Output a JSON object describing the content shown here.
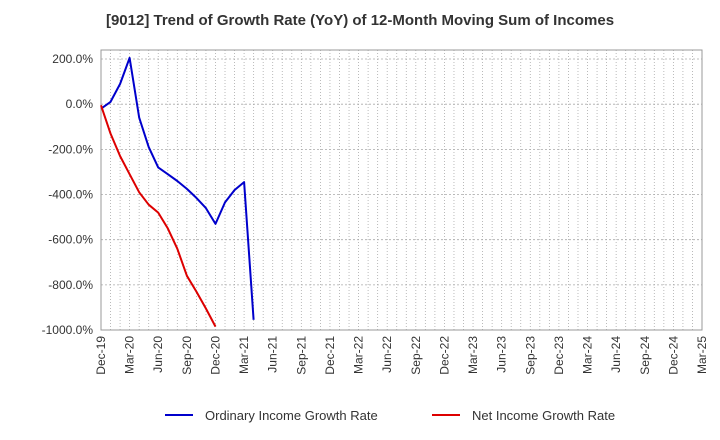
{
  "chart_data": {
    "type": "line",
    "title": "[9012]  Trend of Growth Rate (YoY) of 12-Month Moving Sum of Incomes",
    "xlabel": "",
    "ylabel": "",
    "x_tick_labels": [
      "Dec-19",
      "Mar-20",
      "Jun-20",
      "Sep-20",
      "Dec-20",
      "Mar-21",
      "Jun-21",
      "Sep-21",
      "Dec-21",
      "Mar-22",
      "Jun-22",
      "Sep-22",
      "Dec-22",
      "Mar-23",
      "Jun-23",
      "Sep-23",
      "Dec-23",
      "Mar-24",
      "Jun-24",
      "Sep-24",
      "Dec-24",
      "Mar-25"
    ],
    "y_tick_labels": [
      "200.0%",
      "0.0%",
      "-200.0%",
      "-400.0%",
      "-600.0%",
      "-800.0%",
      "-1000.0%"
    ],
    "y_ticks": [
      200,
      0,
      -200,
      -400,
      -600,
      -800,
      -1000
    ],
    "ylim": [
      -1000,
      240
    ],
    "x_months": 63,
    "grid": true,
    "legend_position": "bottom",
    "series": [
      {
        "name": "Ordinary Income Growth Rate",
        "color": "#0000cc",
        "x": [
          "Dec-19",
          "Jan-20",
          "Feb-20",
          "Mar-20",
          "Apr-20",
          "May-20",
          "Jun-20",
          "Jul-20",
          "Aug-20",
          "Sep-20",
          "Oct-20",
          "Nov-20",
          "Dec-20",
          "Jan-21",
          "Feb-21",
          "Mar-21",
          "Apr-21"
        ],
        "values": [
          -20,
          10,
          90,
          205,
          -60,
          -190,
          -280,
          -310,
          -340,
          -375,
          -415,
          -460,
          -530,
          -435,
          -380,
          -345,
          -955
        ]
      },
      {
        "name": "Net Income Growth Rate",
        "color": "#dd0000",
        "x": [
          "Dec-19",
          "Jan-20",
          "Feb-20",
          "Mar-20",
          "Apr-20",
          "May-20",
          "Jun-20",
          "Jul-20",
          "Aug-20",
          "Sep-20",
          "Oct-20",
          "Nov-20",
          "Dec-20"
        ],
        "values": [
          -5,
          -130,
          -230,
          -310,
          -390,
          -445,
          -480,
          -550,
          -640,
          -760,
          -830,
          -905,
          -985
        ]
      }
    ]
  }
}
